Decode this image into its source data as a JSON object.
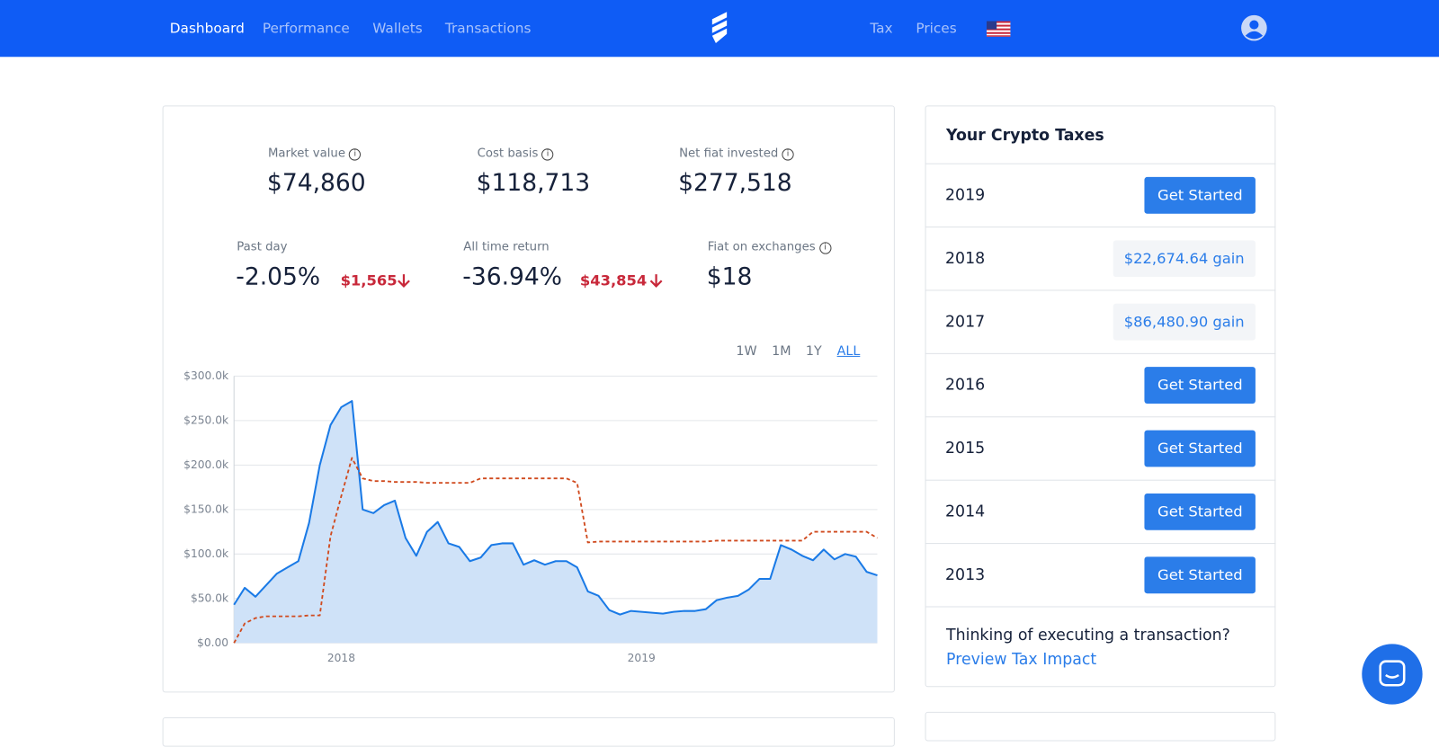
{
  "nav": {
    "left": [
      "Dashboard",
      "Performance",
      "Wallets",
      "Transactions"
    ],
    "right": [
      "Tax",
      "Prices"
    ]
  },
  "stats": [
    {
      "label": "Market value",
      "value": "$74,860"
    },
    {
      "label": "Cost basis",
      "value": "$118,713"
    },
    {
      "label": "Net fiat invested",
      "value": "$277,518"
    },
    {
      "label": "Past day",
      "value": "-2.05%",
      "change": "$1,565"
    },
    {
      "label": "All time return",
      "value": "-36.94%",
      "change": "$43,854"
    },
    {
      "label": "Fiat on exchanges",
      "value": "$18"
    }
  ],
  "ranges": [
    "1W",
    "1M",
    "1Y",
    "ALL"
  ],
  "chart_data": {
    "type": "area",
    "categories": [
      null,
      null,
      null,
      null,
      null,
      null,
      null,
      null,
      null,
      null,
      "2018",
      null,
      null,
      null,
      null,
      null,
      null,
      null,
      null,
      null,
      null,
      null,
      null,
      null,
      null,
      null,
      null,
      null,
      null,
      null,
      null,
      null,
      null,
      null,
      null,
      null,
      null,
      null,
      "2019",
      null,
      null,
      null,
      null,
      null,
      null,
      null,
      null,
      null,
      null,
      null,
      null,
      null,
      null,
      null,
      null,
      null,
      null,
      null,
      null,
      null,
      null
    ],
    "series": [
      {
        "color": "#1a7ae6",
        "fill": "#cfe2f8",
        "values": [
          43000,
          62000,
          52000,
          65000,
          78000,
          85000,
          92000,
          135000,
          200000,
          245000,
          265000,
          272000,
          150000,
          146000,
          155000,
          160000,
          118000,
          98000,
          125000,
          136000,
          112000,
          108000,
          92000,
          96000,
          110000,
          112000,
          112000,
          88000,
          93000,
          88000,
          92000,
          92000,
          85000,
          58000,
          53000,
          37000,
          32000,
          36000,
          35000,
          34000,
          33000,
          35000,
          36000,
          36000,
          38000,
          48000,
          51000,
          53000,
          60000,
          72000,
          72000,
          110000,
          105000,
          98000,
          93000,
          105000,
          94000,
          100000,
          97000,
          80000,
          76000
        ]
      },
      {
        "color": "#d04a1e",
        "dash": true,
        "values": [
          0,
          22000,
          28000,
          30000,
          30000,
          30000,
          30000,
          31000,
          31000,
          120000,
          165000,
          208000,
          185000,
          182000,
          182000,
          181000,
          181000,
          181000,
          180000,
          180000,
          180000,
          180000,
          180000,
          185000,
          185000,
          185000,
          185000,
          185000,
          185000,
          185000,
          185000,
          185000,
          180000,
          113000,
          114000,
          114000,
          114000,
          114000,
          114000,
          114000,
          114000,
          114000,
          114000,
          114000,
          114000,
          115000,
          115000,
          115000,
          115000,
          115000,
          115000,
          115000,
          115000,
          115000,
          125000,
          125000,
          125000,
          125000,
          125000,
          125000,
          118000
        ]
      }
    ],
    "ylim": [
      0,
      300000
    ],
    "yticks": [
      {
        "value": 0,
        "label": "$0.00"
      },
      {
        "value": 50000,
        "label": "$50.0k"
      },
      {
        "value": 100000,
        "label": "$100.0k"
      },
      {
        "value": 150000,
        "label": "$150.0k"
      },
      {
        "value": 200000,
        "label": "$200.0k"
      },
      {
        "value": 250000,
        "label": "$250.0k"
      },
      {
        "value": 300000,
        "label": "$300.0k"
      }
    ],
    "grid": true
  },
  "taxes": {
    "title": "Your Crypto Taxes",
    "rows": [
      {
        "year": "2019",
        "action": "Get Started"
      },
      {
        "year": "2018",
        "action": "$22,674.64 gain"
      },
      {
        "year": "2017",
        "action": "$86,480.90 gain"
      },
      {
        "year": "2016",
        "action": "Get Started"
      },
      {
        "year": "2015",
        "action": "Get Started"
      },
      {
        "year": "2014",
        "action": "Get Started"
      },
      {
        "year": "2013",
        "action": "Get Started"
      }
    ],
    "footer": "Thinking of executing a transaction?",
    "link": "Preview Tax Impact"
  }
}
